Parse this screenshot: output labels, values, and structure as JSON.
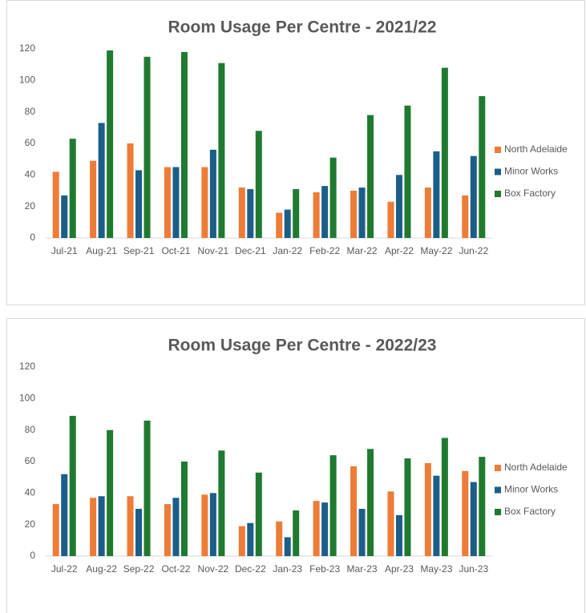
{
  "chart_data": [
    {
      "type": "bar",
      "title": "Room Usage Per Centre - 2021/22",
      "categories": [
        "Jul-21",
        "Aug-21",
        "Sep-21",
        "Oct-21",
        "Nov-21",
        "Dec-21",
        "Jan-22",
        "Feb-22",
        "Mar-22",
        "Apr-22",
        "May-22",
        "Jun-22"
      ],
      "series": [
        {
          "name": "North Adelaide",
          "color": "#ee7b36",
          "values": [
            42,
            49,
            60,
            45,
            45,
            32,
            16,
            29,
            30,
            23,
            32,
            27
          ]
        },
        {
          "name": "Minor Works",
          "color": "#1b5e88",
          "values": [
            27,
            73,
            43,
            45,
            56,
            31,
            18,
            33,
            32,
            40,
            55,
            52
          ]
        },
        {
          "name": "Box Factory",
          "color": "#1f7a2f",
          "values": [
            63,
            119,
            115,
            118,
            111,
            68,
            31,
            51,
            78,
            84,
            108,
            90
          ]
        }
      ],
      "ylim": [
        0,
        120
      ],
      "yticks": [
        0,
        20,
        40,
        60,
        80,
        100,
        120
      ],
      "grid": false,
      "legend": "right"
    },
    {
      "type": "bar",
      "title": "Room Usage Per Centre - 2022/23",
      "categories": [
        "Jul-22",
        "Aug-22",
        "Sep-22",
        "Oct-22",
        "Nov-22",
        "Dec-22",
        "Jan-23",
        "Feb-23",
        "Mar-23",
        "Apr-23",
        "May-23",
        "Jun-23"
      ],
      "series": [
        {
          "name": "North Adelaide",
          "color": "#ee7b36",
          "values": [
            33,
            37,
            38,
            33,
            39,
            19,
            22,
            35,
            57,
            41,
            59,
            54
          ]
        },
        {
          "name": "Minor Works",
          "color": "#1b5e88",
          "values": [
            52,
            38,
            30,
            37,
            40,
            21,
            12,
            34,
            30,
            26,
            51,
            47
          ]
        },
        {
          "name": "Box Factory",
          "color": "#1f7a2f",
          "values": [
            89,
            80,
            86,
            60,
            67,
            53,
            29,
            64,
            68,
            62,
            75,
            63
          ]
        }
      ],
      "ylim": [
        0,
        120
      ],
      "yticks": [
        0,
        20,
        40,
        60,
        80,
        100,
        120
      ],
      "grid": false,
      "legend": "right"
    }
  ]
}
